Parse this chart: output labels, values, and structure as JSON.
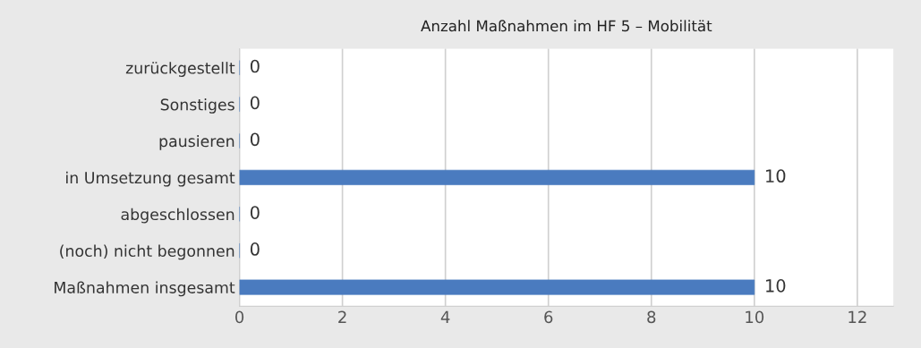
{
  "chart_data": {
    "type": "bar",
    "orientation": "horizontal",
    "title": "Anzahl Maßnahmen im HF 5 – Mobilität",
    "categories": [
      "zurückgestellt",
      "Sonstiges",
      "pausieren",
      "in Umsetzung gesamt",
      "abgeschlossen",
      "(noch) nicht begonnen",
      "Maßnahmen insgesamt"
    ],
    "values": [
      0,
      0,
      0,
      10,
      0,
      0,
      10
    ],
    "color": "#4a7bbf",
    "xlim": [
      0,
      12.7
    ],
    "xticks": [
      0,
      2,
      4,
      6,
      8,
      10,
      12
    ],
    "grid": "x",
    "data_labels": true
  }
}
